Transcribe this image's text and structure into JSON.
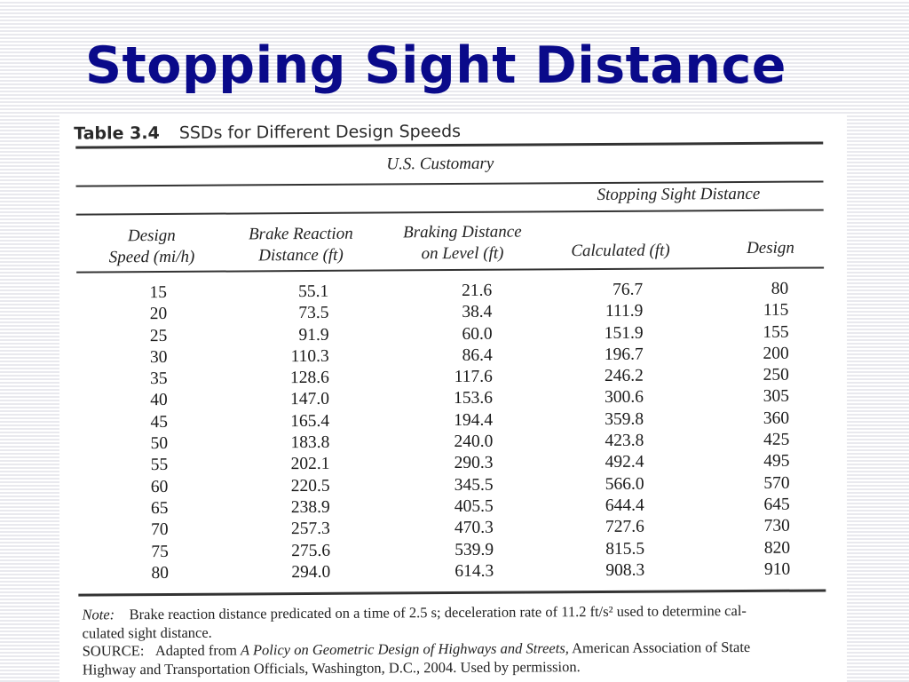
{
  "slide": {
    "title": "Stopping Sight Distance"
  },
  "table": {
    "number": "Table 3.4",
    "caption": "SSDs for Different Design Speeds",
    "group_header": "U.S. Customary",
    "subgroup_header": "Stopping Sight Distance",
    "columns": [
      [
        "Design",
        "Speed (mi/h)"
      ],
      [
        "Brake Reaction",
        "Distance (ft)"
      ],
      [
        "Braking Distance",
        "on Level (ft)"
      ],
      [
        "Calculated (ft)"
      ],
      [
        "Design"
      ]
    ],
    "rows": [
      [
        "15",
        "55.1",
        "21.6",
        "76.7",
        "80"
      ],
      [
        "20",
        "73.5",
        "38.4",
        "111.9",
        "115"
      ],
      [
        "25",
        "91.9",
        "60.0",
        "151.9",
        "155"
      ],
      [
        "30",
        "110.3",
        "86.4",
        "196.7",
        "200"
      ],
      [
        "35",
        "128.6",
        "117.6",
        "246.2",
        "250"
      ],
      [
        "40",
        "147.0",
        "153.6",
        "300.6",
        "305"
      ],
      [
        "45",
        "165.4",
        "194.4",
        "359.8",
        "360"
      ],
      [
        "50",
        "183.8",
        "240.0",
        "423.8",
        "425"
      ],
      [
        "55",
        "202.1",
        "290.3",
        "492.4",
        "495"
      ],
      [
        "60",
        "220.5",
        "345.5",
        "566.0",
        "570"
      ],
      [
        "65",
        "238.9",
        "405.5",
        "644.4",
        "645"
      ],
      [
        "70",
        "257.3",
        "470.3",
        "727.6",
        "730"
      ],
      [
        "75",
        "275.6",
        "539.9",
        "815.5",
        "820"
      ],
      [
        "80",
        "294.0",
        "614.3",
        "908.3",
        "910"
      ]
    ],
    "note": {
      "label": "Note:",
      "line1": "Brake reaction distance predicated on a time of 2.5 s; deceleration rate of 11.2 ft/s² used to determine cal-",
      "line2": "culated sight distance.",
      "source_label": "SOURCE:",
      "source_pre": "Adapted from",
      "source_title": "A Policy on Geometric Design of Highways and Streets,",
      "source_post": "American Association of State",
      "source_line2": "Highway and Transportation Officials, Washington, D.C., 2004. Used by permission."
    }
  }
}
